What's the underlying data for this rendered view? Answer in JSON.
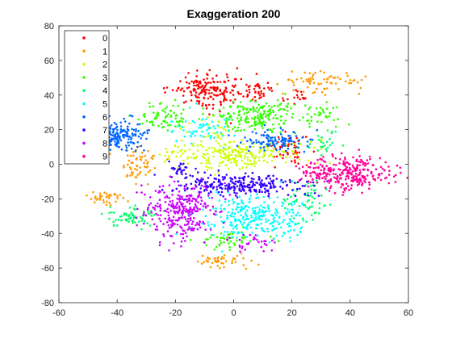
{
  "chart_data": {
    "type": "scatter",
    "title": "Exaggeration 200",
    "xlabel": "",
    "ylabel": "",
    "xlim": [
      -60,
      60
    ],
    "ylim": [
      -80,
      80
    ],
    "xticks": [
      -60,
      -40,
      -20,
      0,
      20,
      40,
      60
    ],
    "yticks": [
      -80,
      -60,
      -40,
      -20,
      0,
      20,
      40,
      60,
      80
    ],
    "grid": false,
    "legend_position": "top-left",
    "series": [
      {
        "name": "0",
        "color": "#ff0000",
        "clusters": [
          {
            "cx": -9,
            "cy": 42,
            "sx": 6,
            "sy": 5,
            "n": 170
          },
          {
            "cx": 8,
            "cy": 43,
            "sx": 4,
            "sy": 3,
            "n": 40
          },
          {
            "cx": 20,
            "cy": 10,
            "sx": 3,
            "sy": 5,
            "n": 50
          },
          {
            "cx": 22,
            "cy": 38,
            "sx": 2,
            "sy": 2,
            "n": 15
          }
        ]
      },
      {
        "name": "1",
        "color": "#ff9900",
        "clusters": [
          {
            "cx": 30,
            "cy": 48,
            "sx": 7,
            "sy": 3,
            "n": 70
          },
          {
            "cx": -33,
            "cy": 0,
            "sx": 3,
            "sy": 5,
            "n": 60
          },
          {
            "cx": -43,
            "cy": -20,
            "sx": 4,
            "sy": 2,
            "n": 40
          },
          {
            "cx": -5,
            "cy": -56,
            "sx": 5,
            "sy": 2,
            "n": 45
          }
        ]
      },
      {
        "name": "2",
        "color": "#ccff00",
        "clusters": [
          {
            "cx": 0,
            "cy": 6,
            "sx": 12,
            "sy": 4,
            "n": 260
          },
          {
            "cx": -8,
            "cy": 20,
            "sx": 4,
            "sy": 3,
            "n": 30
          }
        ]
      },
      {
        "name": "3",
        "color": "#33ff00",
        "clusters": [
          {
            "cx": 8,
            "cy": 28,
            "sx": 7,
            "sy": 5,
            "n": 200
          },
          {
            "cx": -24,
            "cy": 28,
            "sx": 5,
            "sy": 4,
            "n": 70
          },
          {
            "cx": -2,
            "cy": -44,
            "sx": 6,
            "sy": 2,
            "n": 50
          },
          {
            "cx": 28,
            "cy": 28,
            "sx": 4,
            "sy": 4,
            "n": 35
          }
        ]
      },
      {
        "name": "4",
        "color": "#00ff66",
        "clusters": [
          {
            "cx": -34,
            "cy": -30,
            "sx": 4,
            "sy": 3,
            "n": 70
          },
          {
            "cx": 25,
            "cy": -20,
            "sx": 4,
            "sy": 7,
            "n": 60
          },
          {
            "cx": 32,
            "cy": 12,
            "sx": 3,
            "sy": 4,
            "n": 25
          }
        ]
      },
      {
        "name": "5",
        "color": "#00ffff",
        "clusters": [
          {
            "cx": 5,
            "cy": -30,
            "sx": 8,
            "sy": 6,
            "n": 260
          },
          {
            "cx": -10,
            "cy": 20,
            "sx": 5,
            "sy": 4,
            "n": 60
          },
          {
            "cx": 20,
            "cy": -35,
            "sx": 3,
            "sy": 4,
            "n": 25
          }
        ]
      },
      {
        "name": "6",
        "color": "#0066ff",
        "clusters": [
          {
            "cx": -41,
            "cy": 17,
            "sx": 5,
            "sy": 4,
            "n": 220
          },
          {
            "cx": 15,
            "cy": 14,
            "sx": 6,
            "sy": 3,
            "n": 110
          }
        ]
      },
      {
        "name": "7",
        "color": "#3300ff",
        "clusters": [
          {
            "cx": 2,
            "cy": -12,
            "sx": 10,
            "sy": 3,
            "n": 260
          },
          {
            "cx": -18,
            "cy": -4,
            "sx": 2,
            "sy": 2,
            "n": 25
          }
        ]
      },
      {
        "name": "8",
        "color": "#cc00ff",
        "clusters": [
          {
            "cx": -18,
            "cy": -28,
            "sx": 6,
            "sy": 8,
            "n": 290
          },
          {
            "cx": 8,
            "cy": -46,
            "sx": 4,
            "sy": 3,
            "n": 30
          }
        ]
      },
      {
        "name": "9",
        "color": "#ff0099",
        "clusters": [
          {
            "cx": 40,
            "cy": -5,
            "sx": 7,
            "sy": 5,
            "n": 270
          },
          {
            "cx": 27,
            "cy": -5,
            "sx": 3,
            "sy": 3,
            "n": 30
          }
        ]
      }
    ]
  }
}
